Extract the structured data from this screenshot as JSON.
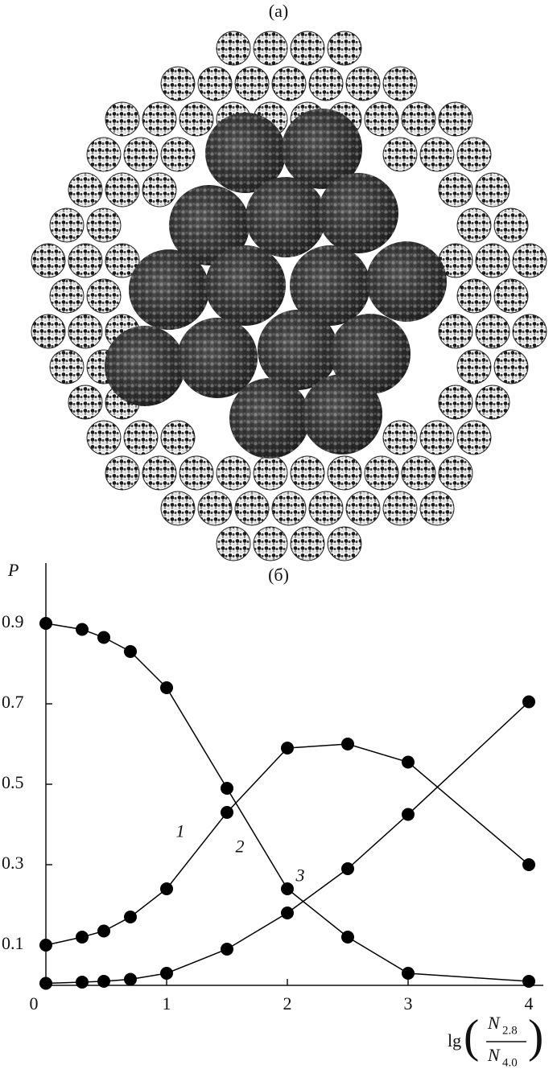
{
  "panel_a_label": "(a)",
  "chart_data": {
    "type": "line",
    "title": "(б)",
    "y_label": "P",
    "x_label": {
      "function": "lg",
      "numerator": {
        "symbol": "N",
        "subscript": "2.8"
      },
      "denominator": {
        "symbol": "N",
        "subscript": "4.0"
      }
    },
    "x": [
      0,
      0.3,
      0.48,
      0.7,
      1,
      1.5,
      2,
      2.5,
      3,
      4
    ],
    "series": [
      {
        "name": "1",
        "color": "#000000",
        "values": [
          0.1,
          0.12,
          0.135,
          0.17,
          0.24,
          0.43,
          0.59,
          0.6,
          0.555,
          0.3
        ]
      },
      {
        "name": "2",
        "color": "#000000",
        "values": [
          0.9,
          0.885,
          0.865,
          0.83,
          0.74,
          0.49,
          0.24,
          0.12,
          0.03,
          0.01
        ]
      },
      {
        "name": "3",
        "color": "#000000",
        "values": [
          0.005,
          0.008,
          0.01,
          0.015,
          0.03,
          0.09,
          0.18,
          0.29,
          0.425,
          0.705
        ]
      }
    ],
    "xlim": [
      0,
      4.12
    ],
    "ylim": [
      0,
      1.05
    ],
    "xticks": [
      0,
      1,
      2,
      3,
      4
    ],
    "yticks": [
      0.1,
      0.3,
      0.5,
      0.7,
      0.9
    ],
    "grid": false
  }
}
